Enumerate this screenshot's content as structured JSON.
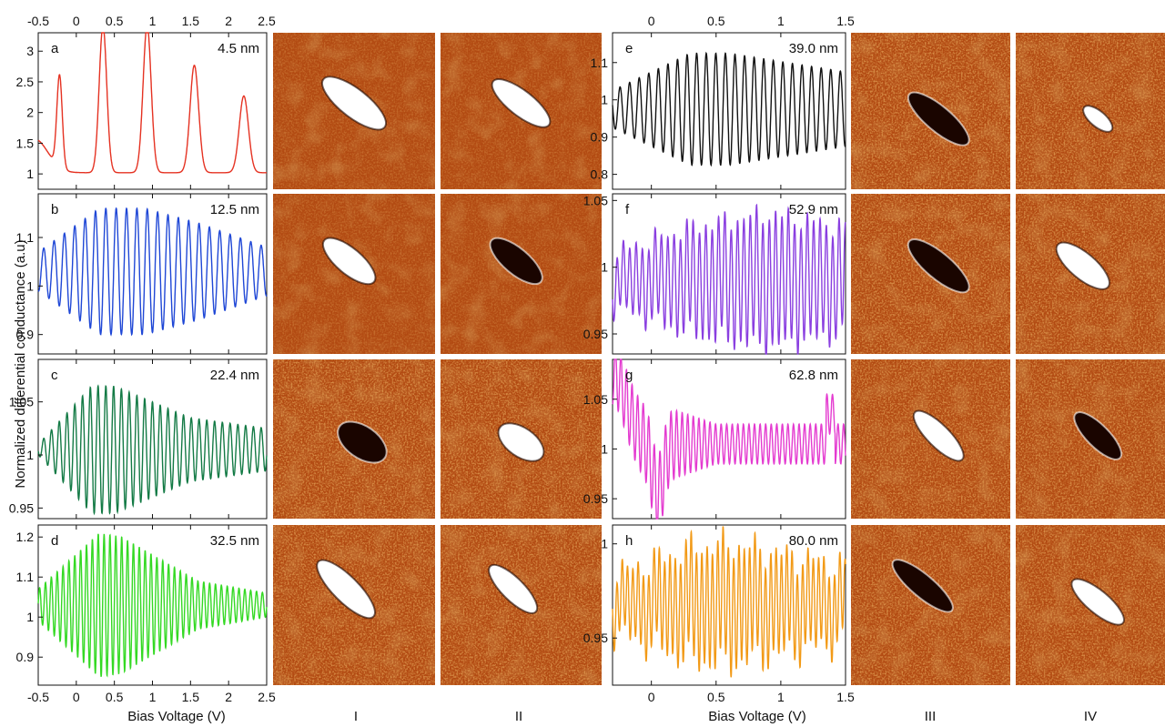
{
  "figure": {
    "ylabel": "Normalized differential conductance (a.u)",
    "left_xlabel": "Bias Voltage (V)",
    "right_xlabel": "Bias Voltage (V)",
    "left_xticks": [
      "-0.5",
      "0",
      "0.5",
      "1",
      "1.5",
      "2",
      "2.5"
    ],
    "right_xticks": [
      "0",
      "0.5",
      "1",
      "1.5"
    ],
    "column_labels": [
      "I",
      "II",
      "III",
      "IV"
    ]
  },
  "colors": {
    "image_dark": "#1a0500",
    "image_mid": "#b24a12",
    "image_light": "#ffffff"
  },
  "chart_data": [
    {
      "type": "line",
      "letter": "a",
      "annotation": "4.5 nm",
      "color": "#e53222",
      "xlim": [
        -0.5,
        2.5
      ],
      "ylim": [
        0.75,
        3.3
      ],
      "yticks": [
        "1",
        "1.5",
        "2",
        "2.5",
        "3"
      ],
      "series": [
        {
          "x": [
            -0.5,
            -0.35,
            -0.22,
            -0.05,
            0.1,
            0.35,
            0.55,
            0.93,
            1.2,
            1.55,
            1.8,
            2.2,
            2.5
          ],
          "y": [
            1.52,
            1.45,
            2.55,
            1.05,
            1.1,
            3.2,
            0.8,
            3.22,
            0.8,
            2.55,
            0.85,
            2.05,
            1.05
          ]
        }
      ]
    },
    {
      "type": "line",
      "letter": "b",
      "annotation": "12.5 nm",
      "color": "#1f47d6",
      "xlim": [
        -0.5,
        2.5
      ],
      "ylim": [
        0.86,
        1.19
      ],
      "yticks": [
        "0.9",
        "1",
        "1.1"
      ],
      "series": [
        {
          "x": [
            -0.5,
            0.1,
            0.9,
            1.5,
            2.5
          ],
          "y": [
            1.0,
            1.16,
            1.16,
            1.12,
            0.97
          ]
        }
      ]
    },
    {
      "type": "line",
      "letter": "c",
      "annotation": "22.4 nm",
      "color": "#137a45",
      "xlim": [
        -0.5,
        2.5
      ],
      "ylim": [
        0.94,
        1.09
      ],
      "yticks": [
        "0.95",
        "1",
        "1.05"
      ],
      "series": [
        {
          "x": [
            -0.5,
            0.2,
            0.5,
            1.5,
            2.5
          ],
          "y": [
            1.0,
            1.06,
            0.95,
            1.03,
            1.0
          ]
        }
      ]
    },
    {
      "type": "line",
      "letter": "d",
      "annotation": "32.5 nm",
      "color": "#34d923",
      "xlim": [
        -0.5,
        2.5
      ],
      "ylim": [
        0.83,
        1.23
      ],
      "yticks": [
        "0.9",
        "1",
        "1.1",
        "1.2"
      ],
      "series": [
        {
          "x": [
            -0.5,
            0.3,
            0.5,
            1.5,
            2.5
          ],
          "y": [
            1.04,
            1.21,
            0.86,
            1.06,
            1.0
          ]
        }
      ]
    },
    {
      "type": "line",
      "letter": "e",
      "annotation": "39.0 nm",
      "color": "#111111",
      "xlim": [
        -0.3,
        1.5
      ],
      "ylim": [
        0.76,
        1.18
      ],
      "yticks": [
        "0.8",
        "0.9",
        "1",
        "1.1"
      ],
      "series": [
        {
          "x": [
            -0.3,
            0.5,
            0.55,
            1.5
          ],
          "y": [
            1.0,
            1.13,
            0.81,
            1.0
          ]
        }
      ]
    },
    {
      "type": "line",
      "letter": "f",
      "annotation": "52.9 nm",
      "color": "#8a3fe0",
      "xlim": [
        -0.3,
        1.5
      ],
      "ylim": [
        0.935,
        1.055
      ],
      "yticks": [
        "0.95",
        "1",
        "1.05"
      ],
      "series": [
        {
          "x": [
            -0.3,
            0.45,
            0.95,
            1.5
          ],
          "y": [
            0.98,
            1.03,
            1.03,
            0.94
          ]
        }
      ]
    },
    {
      "type": "line",
      "letter": "g",
      "annotation": "62.8 nm",
      "color": "#e43bd0",
      "xlim": [
        -0.3,
        1.5
      ],
      "ylim": [
        0.93,
        1.09
      ],
      "yticks": [
        "0.95",
        "1",
        "1.05"
      ],
      "series": [
        {
          "x": [
            -0.3,
            0.05,
            0.2,
            1.35,
            1.5
          ],
          "y": [
            1.08,
            0.957,
            1.06,
            1.04,
            0.99
          ]
        }
      ]
    },
    {
      "type": "line",
      "letter": "h",
      "annotation": "80.0 nm",
      "color": "#f29a17",
      "xlim": [
        -0.3,
        1.5
      ],
      "ylim": [
        0.925,
        1.01
      ],
      "yticks": [
        "0.95",
        "1"
      ],
      "series": [
        {
          "x": [
            -0.3,
            0.5,
            0.45,
            1.5
          ],
          "y": [
            0.97,
            1.0,
            0.935,
            0.97
          ]
        }
      ]
    }
  ]
}
